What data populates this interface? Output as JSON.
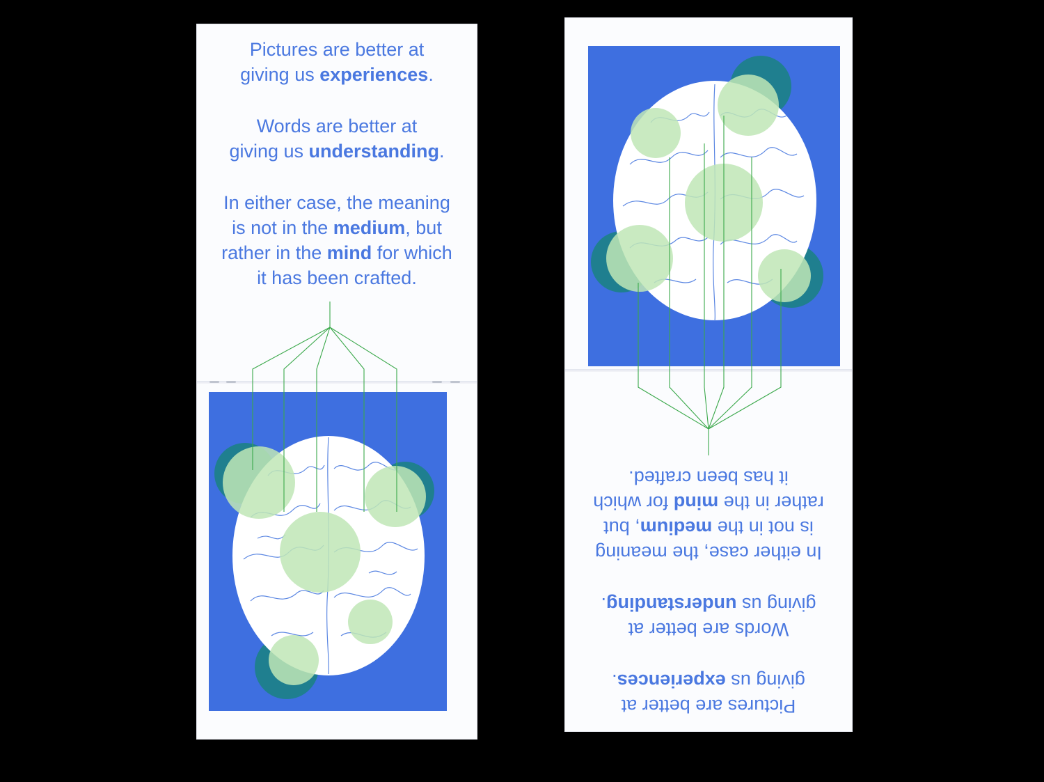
{
  "colors": {
    "background": "#000000",
    "paper": "#fbfcfe",
    "text_blue": "#4a78e0",
    "art_blue": "#3e6fe0",
    "light_green": "#bfe6b6",
    "teal": "#1f7f8f",
    "line_green": "#3aa84a"
  },
  "spread_left": {
    "line1a": "Pictures are better at",
    "line1b_pre": "giving us ",
    "line1b_bold": "experiences",
    "line1b_post": ".",
    "line2a": "Words are better at",
    "line2b_pre": "giving us ",
    "line2b_bold": "understanding",
    "line2b_post": ".",
    "line3a": "In either case, the meaning",
    "line3b_pre": "is not in the ",
    "line3b_bold": "medium",
    "line3b_post": ", but",
    "line4a_pre": "rather in the ",
    "line4a_bold": "mind",
    "line4a_post": " for which",
    "line4b": "it has been crafted."
  },
  "spread_right": {
    "line1a": "Pictures are better at",
    "line1b_pre": "giving us ",
    "line1b_bold": "experiences",
    "line1b_post": ".",
    "line2a": "Words are better at",
    "line2b_pre": "giving us ",
    "line2b_bold": "understanding",
    "line2b_post": ".",
    "line3a": "In either case, the meaning",
    "line3b_pre": "is not in the ",
    "line3b_bold": "medium",
    "line3b_post": ", but",
    "line4a_pre": "rather in the ",
    "line4a_bold": "mind",
    "line4a_post": " for which",
    "line4b": "it has been crafted."
  },
  "icons": {
    "brain": "brain-illustration",
    "circles": "highlight-circle"
  }
}
